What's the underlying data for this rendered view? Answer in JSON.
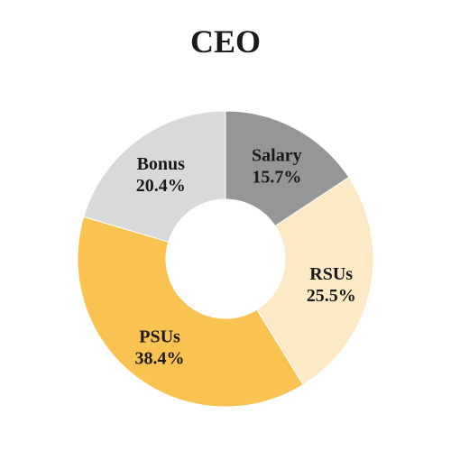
{
  "chart_data": {
    "type": "pie",
    "variant": "donut",
    "title": "CEO",
    "start_angle_deg": 0,
    "direction": "clockwise",
    "slices": [
      {
        "label": "Salary",
        "value": 15.7,
        "display": "15.7%",
        "color": "#969696"
      },
      {
        "label": "RSUs",
        "value": 25.5,
        "display": "25.5%",
        "color": "#fde9c6"
      },
      {
        "label": "PSUs",
        "value": 38.4,
        "display": "38.4%",
        "color": "#fac250"
      },
      {
        "label": "Bonus",
        "value": 20.4,
        "display": "20.4%",
        "color": "#d9d9d9"
      }
    ]
  }
}
